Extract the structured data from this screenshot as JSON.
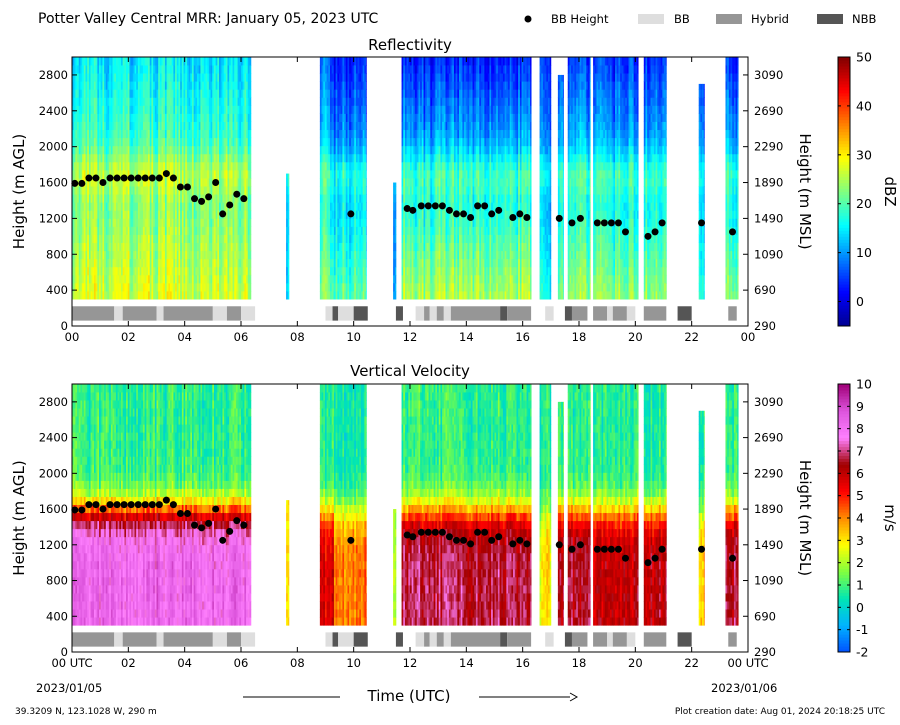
{
  "header": {
    "title": "Potter Valley Central MRR:  January 05, 2023 UTC",
    "legend": [
      {
        "label": "BB Height",
        "kind": "dot",
        "color": "#000000"
      },
      {
        "label": "BB",
        "kind": "rect",
        "color": "#dedede"
      },
      {
        "label": "Hybrid",
        "kind": "rect",
        "color": "#969696"
      },
      {
        "label": "NBB",
        "kind": "rect",
        "color": "#555555"
      }
    ]
  },
  "footer": {
    "location": "39.3209 N, 123.1028 W, 290 m",
    "created": "Plot creation date: Aug 01, 2024 20:18:25 UTC",
    "start_date": "2023/01/05",
    "end_date": "2023/01/06",
    "x_axis_label": "Time (UTC)"
  },
  "chart_data": [
    {
      "type": "heatmap",
      "title": "Reflectivity",
      "ylabel": "Height (m AGL)",
      "ylabel_right": "Height (m MSL)",
      "ylim": [
        0,
        3000
      ],
      "xlim": [
        0,
        24
      ],
      "x_ticks": [
        "00",
        "02",
        "04",
        "06",
        "08",
        "10",
        "12",
        "14",
        "16",
        "18",
        "20",
        "22",
        "00"
      ],
      "y_ticks": [
        "0",
        "400",
        "800",
        "1200",
        "1600",
        "2000",
        "2400",
        "2800"
      ],
      "y_ticks_right": [
        "290",
        "690",
        "1090",
        "1490",
        "1890",
        "2290",
        "2690",
        "3090"
      ],
      "colorbar": {
        "label": "dBZ",
        "min": -5,
        "max": 50,
        "ticks": [
          "0",
          "10",
          "20",
          "30",
          "40",
          "50"
        ]
      },
      "colormap": [
        "#00008f",
        "#0000ff",
        "#0080ff",
        "#00ffff",
        "#80ff80",
        "#ffff00",
        "#ff8000",
        "#ff0000",
        "#800000"
      ]
    },
    {
      "type": "heatmap",
      "title": "Vertical Velocity",
      "ylabel": "Height (m AGL)",
      "ylabel_right": "Height (m MSL)",
      "ylim": [
        0,
        3000
      ],
      "xlim": [
        0,
        24
      ],
      "x_ticks": [
        "00 UTC",
        "02",
        "04",
        "06",
        "08",
        "10",
        "12",
        "14",
        "16",
        "18",
        "20",
        "22",
        "00 UTC"
      ],
      "y_ticks": [
        "0",
        "400",
        "800",
        "1200",
        "1600",
        "2000",
        "2400",
        "2800"
      ],
      "y_ticks_right": [
        "290",
        "690",
        "1090",
        "1490",
        "1890",
        "2290",
        "2690",
        "3090"
      ],
      "colorbar": {
        "label": "m/s",
        "min": -2,
        "max": 10,
        "ticks": [
          "-2",
          "-1",
          "0",
          "1",
          "2",
          "3",
          "4",
          "5",
          "6",
          "7",
          "8",
          "9",
          "10"
        ]
      },
      "colormap": [
        "#0050ff",
        "#00b4ff",
        "#00e6b4",
        "#80ff40",
        "#ffff00",
        "#ff8c00",
        "#ff0000",
        "#a00000",
        "#ff80ff",
        "#dd55dd",
        "#a00078"
      ]
    }
  ],
  "bb_points": [
    {
      "t": 0.1,
      "h": 1590
    },
    {
      "t": 0.35,
      "h": 1590
    },
    {
      "t": 0.6,
      "h": 1650
    },
    {
      "t": 0.85,
      "h": 1650
    },
    {
      "t": 1.1,
      "h": 1600
    },
    {
      "t": 1.35,
      "h": 1650
    },
    {
      "t": 1.6,
      "h": 1650
    },
    {
      "t": 1.85,
      "h": 1650
    },
    {
      "t": 2.1,
      "h": 1650
    },
    {
      "t": 2.35,
      "h": 1650
    },
    {
      "t": 2.6,
      "h": 1650
    },
    {
      "t": 2.85,
      "h": 1650
    },
    {
      "t": 3.1,
      "h": 1650
    },
    {
      "t": 3.35,
      "h": 1700
    },
    {
      "t": 3.6,
      "h": 1650
    },
    {
      "t": 3.85,
      "h": 1550
    },
    {
      "t": 4.1,
      "h": 1550
    },
    {
      "t": 4.35,
      "h": 1420
    },
    {
      "t": 4.6,
      "h": 1390
    },
    {
      "t": 4.85,
      "h": 1440
    },
    {
      "t": 5.1,
      "h": 1600
    },
    {
      "t": 5.35,
      "h": 1250
    },
    {
      "t": 5.6,
      "h": 1350
    },
    {
      "t": 5.85,
      "h": 1470
    },
    {
      "t": 6.1,
      "h": 1420
    },
    {
      "t": 9.9,
      "h": 1250
    },
    {
      "t": 11.9,
      "h": 1310
    },
    {
      "t": 12.1,
      "h": 1290
    },
    {
      "t": 12.4,
      "h": 1340
    },
    {
      "t": 12.65,
      "h": 1340
    },
    {
      "t": 12.9,
      "h": 1340
    },
    {
      "t": 13.15,
      "h": 1340
    },
    {
      "t": 13.4,
      "h": 1290
    },
    {
      "t": 13.65,
      "h": 1250
    },
    {
      "t": 13.9,
      "h": 1250
    },
    {
      "t": 14.15,
      "h": 1210
    },
    {
      "t": 14.4,
      "h": 1340
    },
    {
      "t": 14.65,
      "h": 1340
    },
    {
      "t": 14.9,
      "h": 1250
    },
    {
      "t": 15.15,
      "h": 1290
    },
    {
      "t": 15.65,
      "h": 1210
    },
    {
      "t": 15.9,
      "h": 1250
    },
    {
      "t": 16.15,
      "h": 1210
    },
    {
      "t": 17.3,
      "h": 1200
    },
    {
      "t": 17.75,
      "h": 1150
    },
    {
      "t": 18.05,
      "h": 1200
    },
    {
      "t": 18.65,
      "h": 1150
    },
    {
      "t": 18.9,
      "h": 1150
    },
    {
      "t": 19.15,
      "h": 1150
    },
    {
      "t": 19.4,
      "h": 1150
    },
    {
      "t": 19.65,
      "h": 1050
    },
    {
      "t": 20.45,
      "h": 1000
    },
    {
      "t": 20.7,
      "h": 1050
    },
    {
      "t": 20.95,
      "h": 1150
    },
    {
      "t": 22.35,
      "h": 1150
    },
    {
      "t": 23.45,
      "h": 1050
    }
  ],
  "bb_types": [
    {
      "start": 0.0,
      "end": 1.5,
      "type": "Hybrid"
    },
    {
      "start": 1.5,
      "end": 1.8,
      "type": "BB"
    },
    {
      "start": 1.8,
      "end": 3.0,
      "type": "Hybrid"
    },
    {
      "start": 3.0,
      "end": 3.25,
      "type": "BB"
    },
    {
      "start": 3.25,
      "end": 5.0,
      "type": "Hybrid"
    },
    {
      "start": 5.0,
      "end": 5.5,
      "type": "BB"
    },
    {
      "start": 5.5,
      "end": 6.0,
      "type": "Hybrid"
    },
    {
      "start": 6.0,
      "end": 6.5,
      "type": "BB"
    },
    {
      "start": 9.0,
      "end": 9.25,
      "type": "BB"
    },
    {
      "start": 9.25,
      "end": 9.45,
      "type": "NBB"
    },
    {
      "start": 9.45,
      "end": 10.0,
      "type": "BB"
    },
    {
      "start": 10.0,
      "end": 10.5,
      "type": "NBB"
    },
    {
      "start": 11.5,
      "end": 11.75,
      "type": "NBB"
    },
    {
      "start": 12.2,
      "end": 12.5,
      "type": "BB"
    },
    {
      "start": 12.5,
      "end": 12.7,
      "type": "Hybrid"
    },
    {
      "start": 12.7,
      "end": 12.95,
      "type": "BB"
    },
    {
      "start": 12.95,
      "end": 13.2,
      "type": "Hybrid"
    },
    {
      "start": 13.2,
      "end": 13.45,
      "type": "BB"
    },
    {
      "start": 13.45,
      "end": 15.2,
      "type": "Hybrid"
    },
    {
      "start": 15.2,
      "end": 15.45,
      "type": "NBB"
    },
    {
      "start": 15.45,
      "end": 16.3,
      "type": "Hybrid"
    },
    {
      "start": 16.8,
      "end": 17.1,
      "type": "BB"
    },
    {
      "start": 17.5,
      "end": 17.75,
      "type": "NBB"
    },
    {
      "start": 17.75,
      "end": 18.3,
      "type": "Hybrid"
    },
    {
      "start": 18.5,
      "end": 19.0,
      "type": "Hybrid"
    },
    {
      "start": 19.0,
      "end": 19.2,
      "type": "BB"
    },
    {
      "start": 19.2,
      "end": 19.7,
      "type": "Hybrid"
    },
    {
      "start": 19.7,
      "end": 20.0,
      "type": "BB"
    },
    {
      "start": 20.3,
      "end": 21.1,
      "type": "Hybrid"
    },
    {
      "start": 21.5,
      "end": 22.0,
      "type": "NBB"
    },
    {
      "start": 23.3,
      "end": 23.6,
      "type": "Hybrid"
    }
  ],
  "data_segments": [
    {
      "start": 0.0,
      "end": 6.35,
      "top": 3000,
      "ref_base": 23,
      "ref_low": 27,
      "ref_top": 14,
      "w_low": 8.2,
      "w_top": 0.8
    },
    {
      "start": 7.6,
      "end": 7.7,
      "top": 1700,
      "ref_base": 10,
      "ref_low": 12,
      "ref_top": 8,
      "w_low": 3.0,
      "w_top": 3.0
    },
    {
      "start": 8.8,
      "end": 9.3,
      "top": 3000,
      "ref_base": 16,
      "ref_low": 22,
      "ref_top": 6,
      "w_low": 5.5,
      "w_top": 0.6
    },
    {
      "start": 9.3,
      "end": 10.45,
      "top": 3000,
      "ref_base": 14,
      "ref_low": 20,
      "ref_top": 3,
      "w_low": 4.2,
      "w_top": 0.5
    },
    {
      "start": 11.4,
      "end": 11.5,
      "top": 1600,
      "ref_base": 10,
      "ref_low": 12,
      "ref_top": 8,
      "w_low": 2.5,
      "w_top": 2.5
    },
    {
      "start": 11.7,
      "end": 16.3,
      "top": 3000,
      "ref_base": 20,
      "ref_low": 25,
      "ref_top": 3,
      "w_low": 6.7,
      "w_top": 0.8
    },
    {
      "start": 16.6,
      "end": 17.0,
      "top": 3000,
      "ref_base": 12,
      "ref_low": 16,
      "ref_top": 4,
      "w_low": 2.8,
      "w_top": 0.5
    },
    {
      "start": 17.25,
      "end": 17.45,
      "top": 2800,
      "ref_base": 16,
      "ref_low": 22,
      "ref_top": 6,
      "w_low": 6.2,
      "w_top": 0.7
    },
    {
      "start": 17.6,
      "end": 18.4,
      "top": 3000,
      "ref_base": 18,
      "ref_low": 24,
      "ref_top": 5,
      "w_low": 6.4,
      "w_top": 0.7
    },
    {
      "start": 18.5,
      "end": 20.1,
      "top": 3000,
      "ref_base": 17,
      "ref_low": 23,
      "ref_top": 4,
      "w_low": 6.0,
      "w_top": 0.7
    },
    {
      "start": 20.3,
      "end": 21.1,
      "top": 3000,
      "ref_base": 16,
      "ref_low": 23,
      "ref_top": 4,
      "w_low": 6.3,
      "w_top": 0.7
    },
    {
      "start": 22.25,
      "end": 22.45,
      "top": 2700,
      "ref_base": 14,
      "ref_low": 18,
      "ref_top": 5,
      "w_low": 3.5,
      "w_top": 0.6
    },
    {
      "start": 23.2,
      "end": 23.65,
      "top": 3000,
      "ref_base": 16,
      "ref_low": 23,
      "ref_top": 4,
      "w_low": 6.5,
      "w_top": 0.7
    }
  ]
}
